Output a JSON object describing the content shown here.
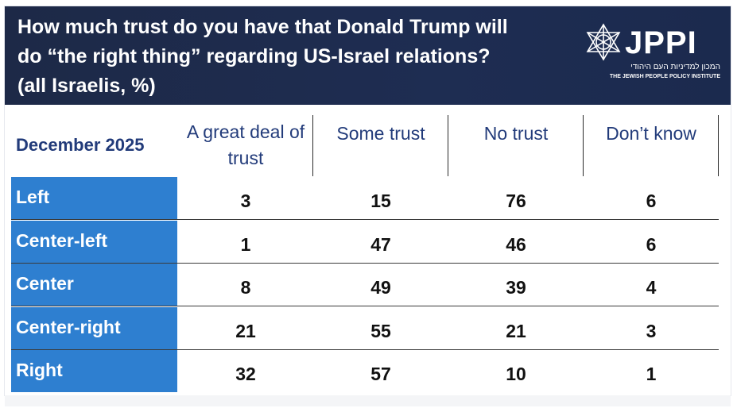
{
  "header": {
    "title_line1": "How much trust do you have that Donald Trump will",
    "title_line2": "do “the right thing” regarding US-Israel relations?",
    "title_line3": "(all Israelis, %)",
    "logo": {
      "name": "JPPI",
      "hebrew": "המכון למדיניות העם היהודי",
      "english": "THE JEWISH PEOPLE POLICY INSTITUTE"
    }
  },
  "colors": {
    "header_bg": "#1d2947",
    "row_label_bg": "#2e7fd0",
    "heading_text": "#223b7a"
  },
  "chart_data": {
    "type": "table",
    "row_header": "December 2025",
    "columns": [
      "A great deal of trust",
      "Some trust",
      "No trust",
      "Don’t know"
    ],
    "columns_display": [
      [
        "A great deal of",
        "trust"
      ],
      [
        "Some trust"
      ],
      [
        "No trust"
      ],
      [
        "Don’t know"
      ]
    ],
    "rows": [
      {
        "label": "Left",
        "values": [
          3,
          15,
          76,
          6
        ]
      },
      {
        "label": "Center-left",
        "values": [
          1,
          47,
          46,
          6
        ]
      },
      {
        "label": "Center",
        "values": [
          8,
          49,
          39,
          4
        ]
      },
      {
        "label": "Center-right",
        "values": [
          21,
          55,
          21,
          3
        ]
      },
      {
        "label": "Right",
        "values": [
          32,
          57,
          10,
          1
        ]
      }
    ]
  }
}
